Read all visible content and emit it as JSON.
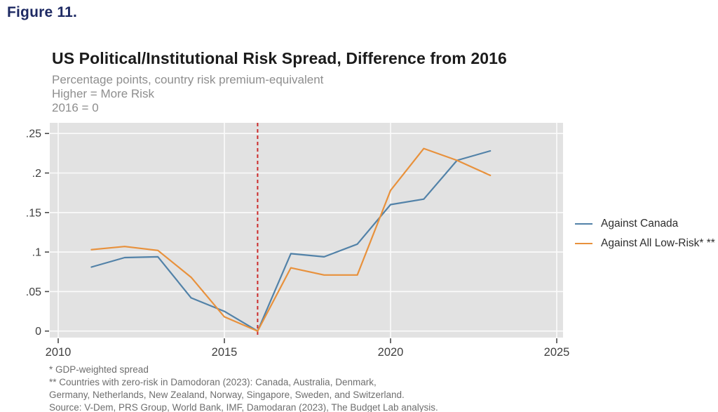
{
  "figure_label": "Figure 11.",
  "header": {
    "title": "US Political/Institutional Risk Spread, Difference from 2016",
    "subtitle_lines": [
      "Percentage points, country risk premium-equivalent",
      "Higher = More Risk",
      "2016 = 0"
    ]
  },
  "chart_data": {
    "type": "line",
    "x": [
      2011,
      2012,
      2013,
      2014,
      2015,
      2016,
      2017,
      2018,
      2019,
      2020,
      2021,
      2022,
      2023
    ],
    "series": [
      {
        "name": "Against Canada",
        "color": "#5282a8",
        "values": [
          0.081,
          0.093,
          0.094,
          0.042,
          0.025,
          0,
          0.098,
          0.094,
          0.11,
          0.16,
          0.167,
          0.216,
          0.228
        ]
      },
      {
        "name": "Against All Low-Risk* **",
        "color": "#e8913c",
        "values": [
          0.103,
          0.107,
          0.102,
          0.068,
          0.018,
          0,
          0.08,
          0.071,
          0.071,
          0.178,
          0.231,
          0.216,
          0.197
        ]
      }
    ],
    "x_ticks": [
      {
        "value": 2010,
        "label": "2010"
      },
      {
        "value": 2015,
        "label": "2015"
      },
      {
        "value": 2020,
        "label": "2020"
      },
      {
        "value": 2025,
        "label": "2025"
      }
    ],
    "y_ticks": [
      {
        "value": 0,
        "label": "0"
      },
      {
        "value": 0.05,
        "label": ".05"
      },
      {
        "value": 0.1,
        "label": ".1"
      },
      {
        "value": 0.15,
        "label": ".15"
      },
      {
        "value": 0.2,
        "label": ".2"
      },
      {
        "value": 0.25,
        "label": ".25"
      }
    ],
    "xlim": [
      2010,
      2025
    ],
    "ylim": [
      0,
      0.25
    ],
    "grid": true,
    "legend_position": "right-outside",
    "reference_line": {
      "x": 2016,
      "color": "#cc2b2b",
      "style": "dashed"
    },
    "colors": {
      "plot_background": "#e2e2e2",
      "gridline": "#fbfbfb",
      "axis_text": "#3f3f3f",
      "tick_mark": "#4a4a4a"
    }
  },
  "footnotes": [
    "* GDP-weighted spread",
    "** Countries with zero-risk in Damodoran (2023): Canada, Australia, Denmark,",
    "Germany, Netherlands, New Zealand, Norway, Singapore, Sweden, and Switzerland.",
    "Source: V-Dem, PRS Group, World Bank, IMF, Damodaran (2023), The Budget Lab analysis."
  ]
}
